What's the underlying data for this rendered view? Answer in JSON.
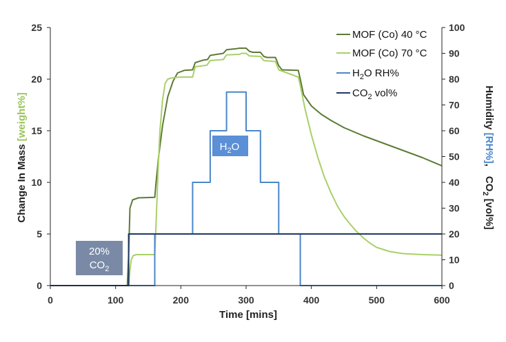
{
  "chart_data": {
    "type": "line",
    "xlabel": "Time [mins]",
    "ylabel_left": {
      "prefix": "Change In Mass ",
      "highlight": "[weight%]",
      "highlight_color": "#9bc45c"
    },
    "ylabel_right": {
      "humidity": "Humidity ",
      "rh": "[RH%]",
      "rh_color": "#4a86c8",
      "sep": ",",
      "co2": "CO",
      "co2_sub": "2",
      "co2_unit": " [vol%]"
    },
    "xlim": [
      0,
      600
    ],
    "ylim_left": [
      0,
      25
    ],
    "ylim_right": [
      0,
      100
    ],
    "x_ticks": [
      "0",
      "100",
      "200",
      "300",
      "400",
      "500",
      "600"
    ],
    "y_left_ticks": [
      "0",
      "5",
      "10",
      "15",
      "20",
      "25"
    ],
    "y_right_ticks": [
      "0",
      "10",
      "20",
      "30",
      "40",
      "50",
      "60",
      "70",
      "80",
      "90",
      "100"
    ],
    "legend": [
      {
        "name": "MOF (Co) 40 °C",
        "sub": "",
        "rest": "",
        "color": "#5c7a34"
      },
      {
        "name": "MOF (Co) 70 °C",
        "sub": "",
        "rest": "",
        "color": "#a9cf68"
      },
      {
        "name": "H",
        "sub": "2",
        "rest": "O RH%",
        "color": "#4a86c8"
      },
      {
        "name": "CO",
        "sub": "2",
        "rest": " vol%",
        "color": "#1f3864"
      }
    ],
    "series": [
      {
        "name": "MOF (Co) 40 °C",
        "axis": "left",
        "color": "#5c7a34",
        "x": [
          0,
          118,
          120,
          122,
          126,
          135,
          160,
          162,
          166,
          172,
          180,
          188,
          195,
          205,
          218,
          222,
          235,
          241,
          245,
          260,
          265,
          270,
          285,
          290,
          293,
          300,
          305,
          310,
          322,
          327,
          332,
          345,
          350,
          355,
          380,
          383,
          388,
          400,
          415,
          430,
          450,
          480,
          510,
          540,
          570,
          600
        ],
        "values": [
          0,
          0,
          3,
          7.5,
          8.3,
          8.5,
          8.55,
          10,
          12.5,
          15.5,
          18.3,
          19.8,
          20.6,
          20.85,
          20.9,
          21.6,
          21.85,
          21.9,
          22.3,
          22.45,
          22.5,
          22.85,
          22.95,
          23.0,
          23.0,
          23.0,
          22.7,
          22.6,
          22.6,
          22.2,
          22.1,
          22.1,
          21.3,
          20.9,
          20.85,
          20.0,
          18.5,
          17.4,
          16.6,
          16.0,
          15.3,
          14.5,
          13.8,
          13.1,
          12.4,
          11.6
        ]
      },
      {
        "name": "MOF (Co) 70 °C",
        "axis": "left",
        "color": "#a9cf68",
        "x": [
          0,
          120,
          122,
          124,
          127,
          132,
          160,
          162,
          165,
          168,
          172,
          176,
          180,
          185,
          190,
          200,
          218,
          222,
          240,
          245,
          265,
          270,
          290,
          293,
          300,
          305,
          322,
          327,
          345,
          350,
          380,
          383,
          390,
          400,
          410,
          420,
          430,
          440,
          450,
          460,
          470,
          480,
          490,
          500,
          520,
          540,
          570,
          600
        ],
        "values": [
          0,
          0,
          1.5,
          2.5,
          2.9,
          3.0,
          3.0,
          6,
          11,
          15,
          18,
          19.6,
          20.0,
          20.1,
          20.15,
          20.2,
          20.2,
          21.2,
          21.35,
          21.8,
          21.9,
          22.35,
          22.4,
          22.5,
          22.5,
          22.25,
          22.2,
          21.8,
          21.7,
          20.9,
          20.2,
          19.4,
          17.2,
          14.6,
          12.4,
          10.5,
          9.0,
          7.7,
          6.7,
          5.9,
          5.2,
          4.6,
          4.1,
          3.7,
          3.3,
          3.1,
          3.0,
          2.95
        ]
      },
      {
        "name": "H2O RH%",
        "axis": "right",
        "color": "#4a86c8",
        "x": [
          0,
          160,
          160,
          218,
          218,
          245,
          245,
          270,
          270,
          300,
          300,
          322,
          322,
          350,
          350,
          383,
          383,
          600
        ],
        "values": [
          0,
          0,
          20,
          20,
          40,
          40,
          60,
          60,
          75,
          75,
          60,
          60,
          40,
          40,
          20,
          20,
          0,
          0
        ]
      },
      {
        "name": "CO2 vol%",
        "axis": "right",
        "color": "#1f3864",
        "x": [
          0,
          120,
          120,
          600
        ],
        "values": [
          0,
          0,
          20,
          20
        ]
      }
    ],
    "annotations": [
      {
        "id": "co2",
        "line1": "20%",
        "line2": "CO",
        "line2_sub": "2",
        "fill": "#7a8aa6"
      },
      {
        "id": "h2o",
        "line1": "H",
        "line1_sub": "2",
        "line1_rest": "O",
        "fill": "#5b8fd6"
      }
    ]
  }
}
